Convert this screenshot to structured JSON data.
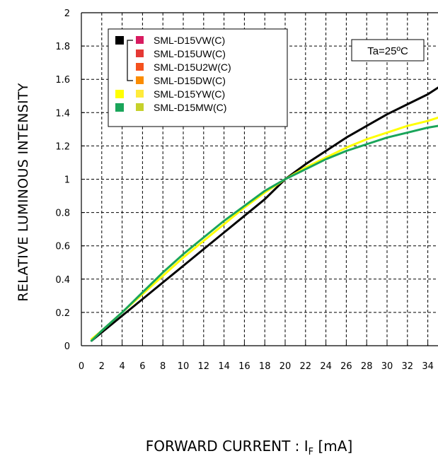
{
  "chart_data": {
    "type": "line",
    "ylabel": "RELATIVE LUMINOUS INTENSITY",
    "xlabel": {
      "prefix": "FORWARD CURRENT : I",
      "subscript": "F",
      "suffix": " [mA]"
    },
    "xlim": [
      0,
      35
    ],
    "ylim": [
      0,
      2
    ],
    "x_ticks": [
      "0",
      "2",
      "4",
      "6",
      "8",
      "10",
      "12",
      "14",
      "16",
      "18",
      "20",
      "22",
      "24",
      "26",
      "28",
      "30",
      "32",
      "34"
    ],
    "y_ticks": [
      "0",
      "0.2",
      "0.4",
      "0.6",
      "0.8",
      "1",
      "1.2",
      "1.4",
      "1.6",
      "1.8",
      "2"
    ],
    "grid": true,
    "annotation": "Ta=25ºC",
    "legend": [
      {
        "label": "SML-D15VW(C)",
        "color": "#d81b60"
      },
      {
        "label": "SML-D15UW(C)",
        "color": "#e53935"
      },
      {
        "label": "SML-D15U2W(C)",
        "color": "#f4511e"
      },
      {
        "label": "SML-D15DW(C)",
        "color": "#fb8c00"
      },
      {
        "label": "SML-D15YW(C)",
        "color": "#ffeb3b"
      },
      {
        "label": "SML-D15MW(C)",
        "color": "#c6d12b"
      }
    ],
    "legend_groups": [
      {
        "color": "#000000",
        "rows": [
          0,
          3
        ]
      },
      {
        "color": "#ffff00",
        "rows": [
          4,
          4
        ]
      },
      {
        "color": "#1aa55a",
        "rows": [
          5,
          5
        ]
      }
    ],
    "series": [
      {
        "color": "#000000",
        "x": [
          1,
          2,
          4,
          6,
          8,
          10,
          12,
          14,
          16,
          18,
          20,
          22,
          24,
          26,
          28,
          30,
          32,
          34,
          35
        ],
        "y": [
          0.03,
          0.08,
          0.18,
          0.28,
          0.38,
          0.48,
          0.58,
          0.68,
          0.78,
          0.88,
          1.0,
          1.09,
          1.17,
          1.25,
          1.32,
          1.39,
          1.45,
          1.51,
          1.55
        ]
      },
      {
        "color": "#ffff00",
        "x": [
          1,
          2,
          4,
          6,
          8,
          10,
          12,
          14,
          16,
          18,
          20,
          22,
          24,
          26,
          28,
          30,
          32,
          34,
          35
        ],
        "y": [
          0.04,
          0.09,
          0.2,
          0.31,
          0.42,
          0.53,
          0.63,
          0.73,
          0.83,
          0.92,
          1.0,
          1.07,
          1.13,
          1.19,
          1.24,
          1.28,
          1.32,
          1.35,
          1.37
        ]
      },
      {
        "color": "#1aa55a",
        "x": [
          1,
          2,
          4,
          6,
          8,
          10,
          12,
          14,
          16,
          18,
          20,
          22,
          24,
          26,
          28,
          30,
          32,
          34,
          35
        ],
        "y": [
          0.03,
          0.09,
          0.2,
          0.32,
          0.44,
          0.55,
          0.65,
          0.75,
          0.84,
          0.93,
          1.0,
          1.06,
          1.12,
          1.17,
          1.21,
          1.25,
          1.28,
          1.31,
          1.32
        ]
      }
    ]
  }
}
